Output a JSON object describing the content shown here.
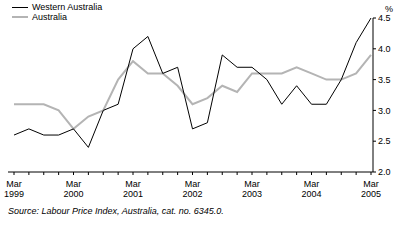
{
  "chart_data": {
    "type": "line",
    "y_label": "%",
    "source": "Source: Labour Price Index, Australia, cat. no. 6345.0.",
    "categories": [
      "Mar 1999",
      null,
      null,
      null,
      "Mar 2000",
      null,
      null,
      null,
      "Mar 2001",
      null,
      null,
      null,
      "Mar 2002",
      null,
      null,
      null,
      "Mar 2003",
      null,
      null,
      null,
      "Mar 2004",
      null,
      null,
      null,
      "Mar 2005"
    ],
    "series": [
      {
        "name": "Western Australia",
        "color": "#000000",
        "values": [
          2.6,
          2.7,
          2.6,
          2.6,
          2.7,
          2.4,
          3.0,
          3.1,
          4.0,
          4.2,
          3.6,
          3.7,
          2.7,
          2.8,
          3.9,
          3.7,
          3.7,
          3.5,
          3.1,
          3.4,
          3.1,
          3.1,
          3.5,
          4.1,
          4.5
        ]
      },
      {
        "name": "Australia",
        "color": "#b4b4b4",
        "values": [
          3.1,
          3.1,
          3.1,
          3.0,
          2.7,
          2.9,
          3.0,
          3.5,
          3.8,
          3.6,
          3.6,
          3.4,
          3.1,
          3.2,
          3.4,
          3.3,
          3.6,
          3.6,
          3.6,
          3.7,
          3.6,
          3.5,
          3.5,
          3.6,
          3.9
        ]
      }
    ],
    "ylim": [
      2.0,
      4.5
    ],
    "yticks": [
      {
        "value": 2.0,
        "label": "2.0"
      },
      {
        "value": 2.5,
        "label": "2.5"
      },
      {
        "value": 3.0,
        "label": "3.0"
      },
      {
        "value": 3.5,
        "label": "3.5"
      },
      {
        "value": 4.0,
        "label": "4.0"
      },
      {
        "value": 4.5,
        "label": "4.5"
      }
    ],
    "legend": "upper left",
    "grid": false
  }
}
